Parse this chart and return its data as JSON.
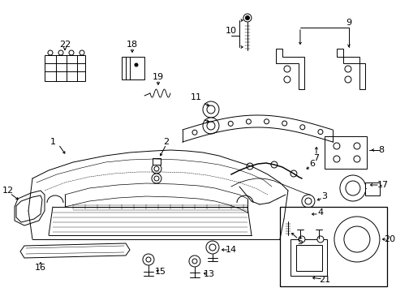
{
  "bg": "#ffffff",
  "lc": "#000000",
  "lw": 0.7,
  "fig_w": 4.89,
  "fig_h": 3.6,
  "dpi": 100
}
